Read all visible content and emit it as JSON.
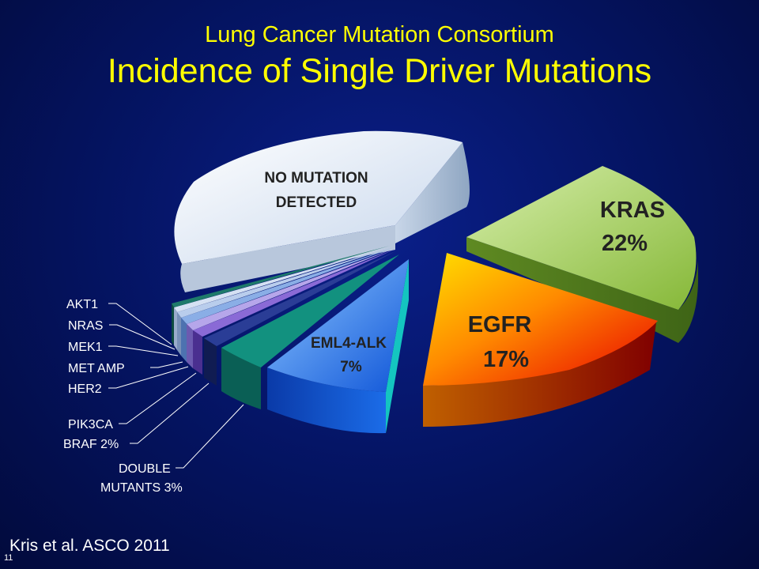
{
  "slide": {
    "title_line1": "Lung Cancer Mutation Consortium",
    "title_line2": "Incidence of Single Driver Mutations",
    "source": "Kris et al. ASCO 2011",
    "slide_number": "11"
  },
  "chart_data": {
    "type": "pie",
    "style": "3d-exploded",
    "slices": [
      {
        "label": "NO MUTATION DETECTED",
        "value_text": "",
        "color": "#dfeaf8"
      },
      {
        "label": "KRAS",
        "value_text": "22%",
        "value": 22,
        "color": "#9ccc4a"
      },
      {
        "label": "EGFR",
        "value_text": "17%",
        "value": 17,
        "color": "#f25a00"
      },
      {
        "label": "EML4-ALK",
        "value_text": "7%",
        "value": 7,
        "color": "#1565e0"
      },
      {
        "label": "DOUBLE MUTANTS",
        "value_text": "3%",
        "value": 3,
        "color": "#0f8c7d"
      },
      {
        "label": "BRAF",
        "value_text": "2%",
        "value": 2,
        "color": "#1c2d78"
      },
      {
        "label": "PIK3CA",
        "value_text": "",
        "color": "#8a6ad6"
      },
      {
        "label": "HER2",
        "value_text": "",
        "color": "#b6a6ea"
      },
      {
        "label": "MET AMP",
        "value_text": "",
        "color": "#8aaee6"
      },
      {
        "label": "MEK1",
        "value_text": "",
        "color": "#b9cdec"
      },
      {
        "label": "NRAS",
        "value_text": "",
        "color": "#d5e1f3"
      },
      {
        "label": "AKT1",
        "value_text": "",
        "color": "#1e7a6a"
      }
    ],
    "callout_labels": [
      {
        "text": "AKT1"
      },
      {
        "text": "NRAS"
      },
      {
        "text": "MEK1"
      },
      {
        "text": "MET AMP"
      },
      {
        "text": "HER2"
      },
      {
        "text": "PIK3CA"
      },
      {
        "text": "BRAF 2%"
      },
      {
        "text": "DOUBLE"
      },
      {
        "text": "MUTANTS 3%"
      }
    ]
  }
}
